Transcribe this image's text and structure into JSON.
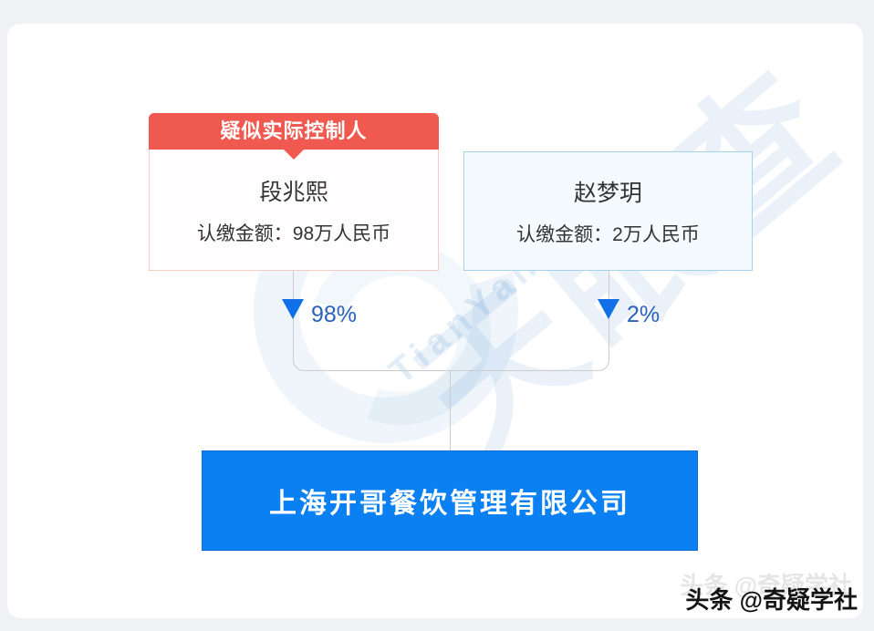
{
  "diagram": {
    "shareholders": [
      {
        "tag": "疑似实际控制人",
        "name": "段兆熙",
        "amount": "认缴金额：98万人民币",
        "percent": "98%"
      },
      {
        "name": "赵梦玥",
        "amount": "认缴金额：2万人民币",
        "percent": "2%"
      }
    ],
    "company": {
      "name": "上海开哥餐饮管理有限公司"
    }
  },
  "watermark": {
    "cjk": "天眼查",
    "latin": "TianYancha"
  },
  "attribution": {
    "text": "头条 @奇疑学社"
  },
  "colors": {
    "tag_red": "#f0594f",
    "company_blue": "#0b80f2",
    "arrow_blue": "#1170e8",
    "percent_blue": "#2a62bd",
    "line_gray": "#cccccc",
    "red_box_border": "#f1cdc6",
    "blue_box_border": "#a6d2e8",
    "blue_box_fill": "#f4fafd"
  }
}
